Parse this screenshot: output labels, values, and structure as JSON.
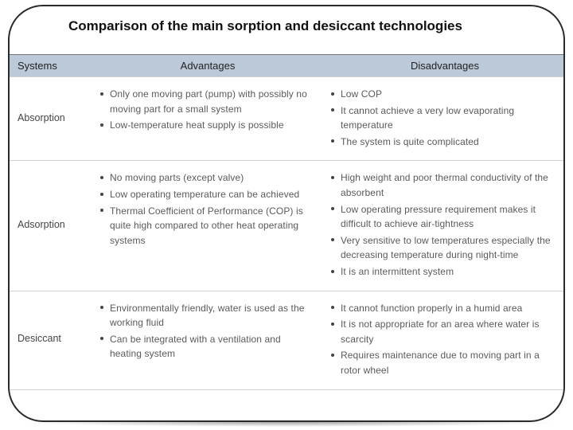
{
  "title": "Comparison of the main sorption and desiccant technologies",
  "colors": {
    "header_bg": "#bcc9d8",
    "border": "#cfcfcf",
    "frame": "#2a2a2a",
    "title_text": "#111111",
    "body_text": "#5a5a5a"
  },
  "table": {
    "columns": [
      "Systems",
      "Advantages",
      "Disadvantages"
    ],
    "rows": [
      {
        "system": "Absorption",
        "advantages": [
          "Only one moving part (pump) with possibly no moving part for a small system",
          "Low-temperature heat supply is possible"
        ],
        "disadvantages": [
          "Low COP",
          "It cannot achieve a very low evaporating temperature",
          "The system is quite complicated"
        ]
      },
      {
        "system": "Adsorption",
        "advantages": [
          "No moving parts (except valve)",
          "Low operating temperature can be achieved",
          "Thermal Coefficient of Performance (COP) is quite high compared to other heat operating systems"
        ],
        "disadvantages": [
          "High weight and poor thermal conductivity of the absorbent",
          "Low operating pressure requirement makes it difficult to achieve air-tightness",
          "Very sensitive to low temperatures especially the decreasing temperature during night-time",
          "It is an intermittent system"
        ]
      },
      {
        "system": "Desiccant",
        "advantages": [
          "Environmentally friendly, water is used as the working fluid",
          "Can be integrated with a ventilation and heating system"
        ],
        "disadvantages": [
          "It cannot function properly in a humid area",
          "It is not appropriate for an area where water is scarcity",
          "Requires maintenance due to moving part in a rotor wheel"
        ]
      }
    ]
  }
}
